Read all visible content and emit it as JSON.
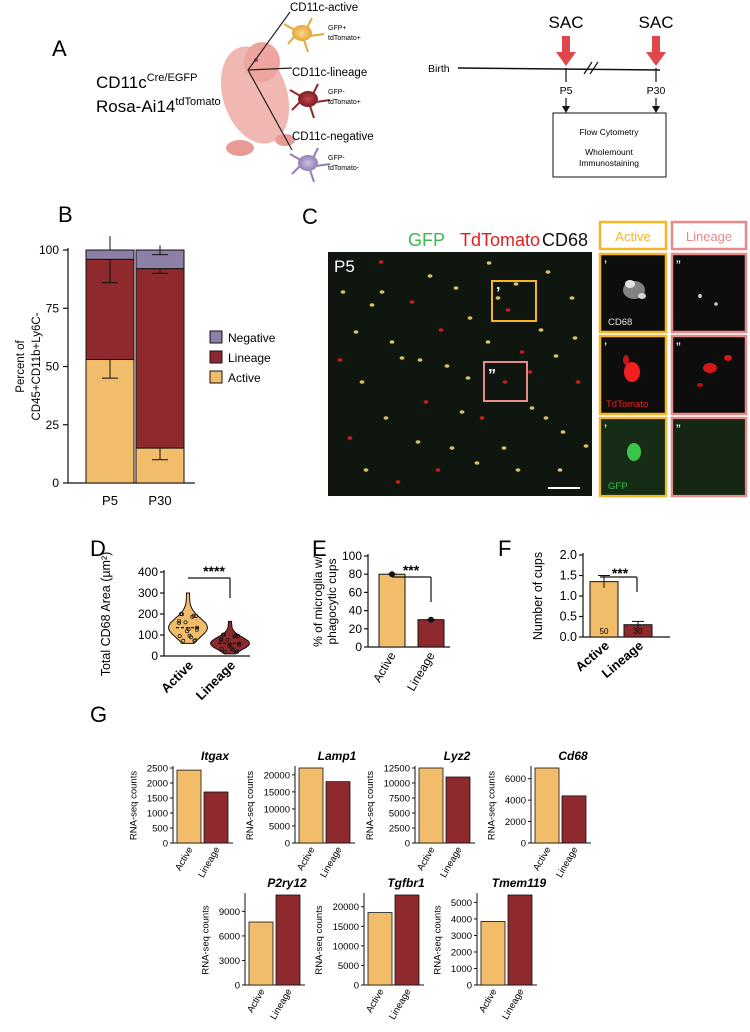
{
  "panel_labels": {
    "A": "A",
    "B": "B",
    "C": "C",
    "D": "D",
    "E": "E",
    "F": "F",
    "G": "G"
  },
  "colors": {
    "active": "#f2bd6b",
    "lineage": "#8e2a2e",
    "negative": "#8d7fa6",
    "active_border": "#f5b524",
    "lineage_border": "#e98a8a",
    "arrow": "#e0474c",
    "gfp": "#3dba4e",
    "tdtomato": "#e21d1d",
    "cd68": "#111111"
  },
  "panel_a": {
    "mouse_line1": "CD11c",
    "mouse_line1_sup": "Cre/EGFP",
    "mouse_line2": "Rosa-Ai14",
    "mouse_line2_sup": "tdTomato",
    "cells": [
      {
        "title": "CD11c-active",
        "marker1": "GFP+",
        "marker2": "tdTomato+"
      },
      {
        "title": "CD11c-lineage",
        "marker1": "GFP-",
        "marker2": "tdTomato+"
      },
      {
        "title": "CD11c-negative",
        "marker1": "GFP-",
        "marker2": "tdTomato-"
      }
    ],
    "timeline": {
      "birth": "Birth",
      "sac": "SAC",
      "p5": "P5",
      "p30": "P30",
      "box_line1": "Flow Cytometry",
      "box_line2": "Wholemount",
      "box_line3": "Immunostaining"
    }
  },
  "panel_c": {
    "title_gfp": "GFP",
    "title_td": "TdTomato",
    "title_cd68": "CD68",
    "age": "P5",
    "active_label": "Active",
    "lineage_label": "Lineage",
    "prime": "’",
    "dprime": "”",
    "channel_labels": [
      "CD68",
      "TdTomato",
      "GFP"
    ]
  },
  "chart_data": [
    {
      "type": "bar",
      "id": "B",
      "stacked": true,
      "categories": [
        "P5",
        "P30"
      ],
      "series": [
        {
          "name": "Active",
          "values": [
            53,
            15
          ],
          "error": [
            8,
            5
          ]
        },
        {
          "name": "Lineage",
          "values": [
            43,
            77
          ],
          "error": [
            10,
            2
          ]
        },
        {
          "name": "Negative",
          "values": [
            4,
            8
          ],
          "error": [
            0,
            2
          ]
        }
      ],
      "ylabel": "Percent of CD45+CD11b+Ly6C-",
      "ylim": [
        0,
        100
      ],
      "yticks": [
        0,
        25,
        50,
        75,
        100
      ],
      "legend": [
        "Negative",
        "Lineage",
        "Active"
      ],
      "legend_position": "right"
    },
    {
      "type": "violin",
      "id": "D",
      "categories": [
        "Active",
        "Lineage"
      ],
      "medians": [
        135,
        60
      ],
      "ranges": [
        [
          60,
          300
        ],
        [
          10,
          165
        ]
      ],
      "ylabel": "Total CD68 Area (µm²)",
      "ylim": [
        0,
        400
      ],
      "yticks": [
        0,
        100,
        200,
        300,
        400
      ],
      "significance": "****"
    },
    {
      "type": "bar",
      "id": "E",
      "categories": [
        "Active",
        "Lineage"
      ],
      "values": [
        80,
        30
      ],
      "error": [
        1,
        1
      ],
      "ylabel": "% of microglia w/ phagocytic cups",
      "ylim": [
        0,
        100
      ],
      "yticks": [
        0,
        20,
        40,
        60,
        80,
        100
      ],
      "significance": "***"
    },
    {
      "type": "bar",
      "id": "F",
      "categories": [
        "Active",
        "Lineage"
      ],
      "values": [
        1.35,
        0.3
      ],
      "error": [
        0.15,
        0.08
      ],
      "n": [
        "50",
        "30"
      ],
      "ylabel": "Number of cups",
      "ylim": [
        0,
        2.0
      ],
      "yticks": [
        "0.0",
        "0.5",
        "1.0",
        "1.5",
        "2.0"
      ],
      "significance": "***"
    },
    {
      "type": "bar",
      "id": "G-Itgax",
      "title": "Itgax",
      "ylabel": "RNA-seq counts",
      "categories": [
        "Active",
        "Lineage"
      ],
      "values": [
        2430,
        1700
      ],
      "ylim": [
        0,
        2500
      ],
      "yticks": [
        0,
        500,
        1000,
        1500,
        2000,
        2500
      ]
    },
    {
      "type": "bar",
      "id": "G-Lamp1",
      "title": "Lamp1",
      "ylabel": "RNA-seq counts",
      "categories": [
        "Active",
        "Lineage"
      ],
      "values": [
        22000,
        18000
      ],
      "ylim": [
        0,
        22000
      ],
      "yticks": [
        0,
        5000,
        10000,
        15000,
        20000
      ]
    },
    {
      "type": "bar",
      "id": "G-Lyz2",
      "title": "Lyz2",
      "ylabel": "RNA-seq counts",
      "categories": [
        "Active",
        "Lineage"
      ],
      "values": [
        12500,
        11000
      ],
      "ylim": [
        0,
        12500
      ],
      "yticks": [
        0,
        2500,
        5000,
        7500,
        10000,
        12500
      ]
    },
    {
      "type": "bar",
      "id": "G-Cd68",
      "title": "Cd68",
      "ylabel": "RNA-seq counts",
      "categories": [
        "Active",
        "Lineage"
      ],
      "values": [
        7000,
        4400
      ],
      "ylim": [
        0,
        7000
      ],
      "yticks": [
        0,
        2000,
        4000,
        6000
      ]
    },
    {
      "type": "bar",
      "id": "G-P2ry12",
      "title": "P2ry12",
      "ylabel": "RNA-seq counts",
      "categories": [
        "Active",
        "Lineage"
      ],
      "values": [
        7700,
        11000
      ],
      "ylim": [
        0,
        11000
      ],
      "yticks": [
        0,
        3000,
        6000,
        9000
      ]
    },
    {
      "type": "bar",
      "id": "G-Tgfbr1",
      "title": "Tgfbr1",
      "ylabel": "RNA-seq counts",
      "categories": [
        "Active",
        "Lineage"
      ],
      "values": [
        18500,
        23000
      ],
      "ylim": [
        0,
        23000
      ],
      "yticks": [
        0,
        5000,
        10000,
        15000,
        20000
      ]
    },
    {
      "type": "bar",
      "id": "G-Tmem119",
      "title": "Tmem119",
      "ylabel": "RNA-seq counts",
      "categories": [
        "Active",
        "Lineage"
      ],
      "values": [
        3850,
        5450
      ],
      "ylim": [
        0,
        5450
      ],
      "yticks": [
        0,
        1000,
        2000,
        3000,
        4000,
        5000
      ]
    }
  ]
}
